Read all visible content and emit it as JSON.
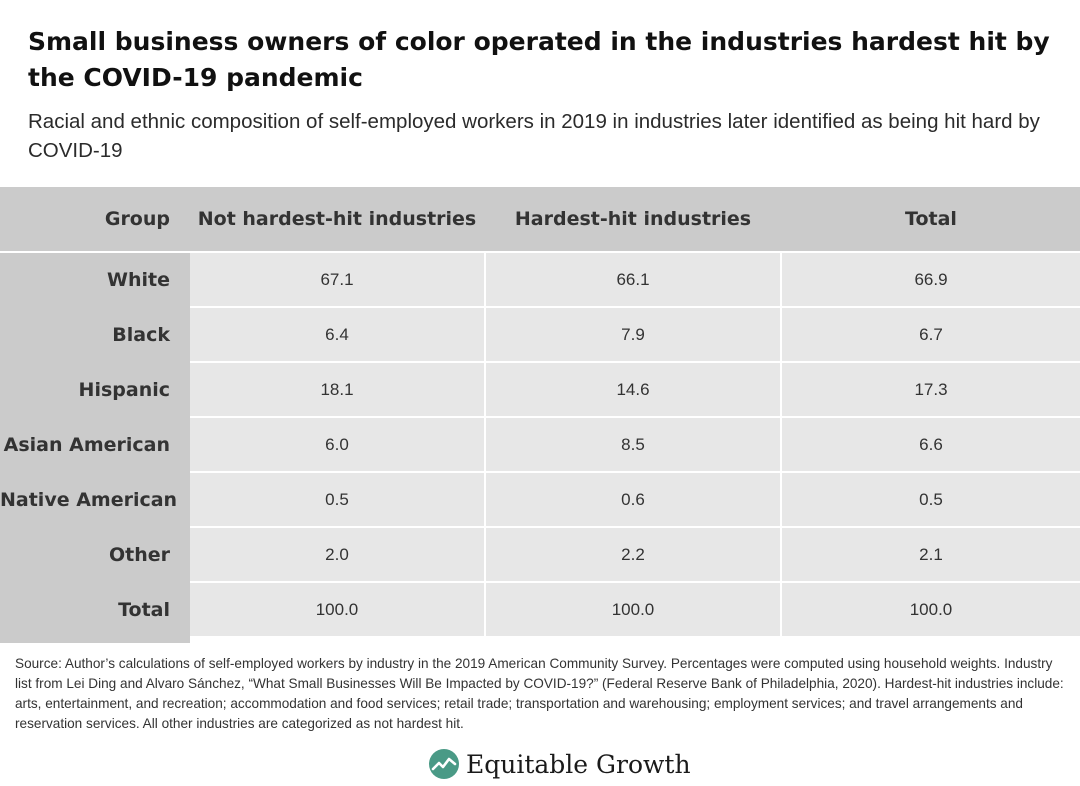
{
  "title": "Small business owners of color operated in the industries hardest hit by the COVID-19 pandemic",
  "subtitle": "Racial and ethnic composition of self-employed workers in 2019 in industries later identified as being hit hard by COVID-19",
  "chart_data": {
    "type": "table",
    "columns": [
      "Group",
      "Not hardest-hit industries",
      "Hardest-hit industries",
      "Total"
    ],
    "rows": [
      {
        "group": "White",
        "values": [
          "67.1",
          "66.1",
          "66.9"
        ]
      },
      {
        "group": "Black",
        "values": [
          "6.4",
          "7.9",
          "6.7"
        ]
      },
      {
        "group": "Hispanic",
        "values": [
          "18.1",
          "14.6",
          "17.3"
        ]
      },
      {
        "group": "Asian American",
        "values": [
          "6.0",
          "8.5",
          "6.6"
        ]
      },
      {
        "group": "Native American",
        "values": [
          "0.5",
          "0.6",
          "0.5"
        ]
      },
      {
        "group": "Other",
        "values": [
          "2.0",
          "2.2",
          "2.1"
        ]
      },
      {
        "group": "Total",
        "values": [
          "100.0",
          "100.0",
          "100.0"
        ]
      }
    ]
  },
  "source": "Source: Author’s calculations of self-employed workers by industry in the 2019 American Community Survey. Percentages were computed using household weights. Industry list from Lei Ding and Alvaro Sánchez, “What Small Businesses Will Be Impacted by COVID-19?” (Federal Reserve Bank of Philadelphia, 2020). Hardest-hit industries include: arts, entertainment, and recreation; accommodation and food services; retail trade; transportation and warehousing; employment services; and travel arrangements and reservation services. All other industries are categorized as not hardest hit.",
  "brand": {
    "name": "Equitable Growth",
    "icon": "trend-line-circle-icon",
    "color": "#4a9a86"
  }
}
